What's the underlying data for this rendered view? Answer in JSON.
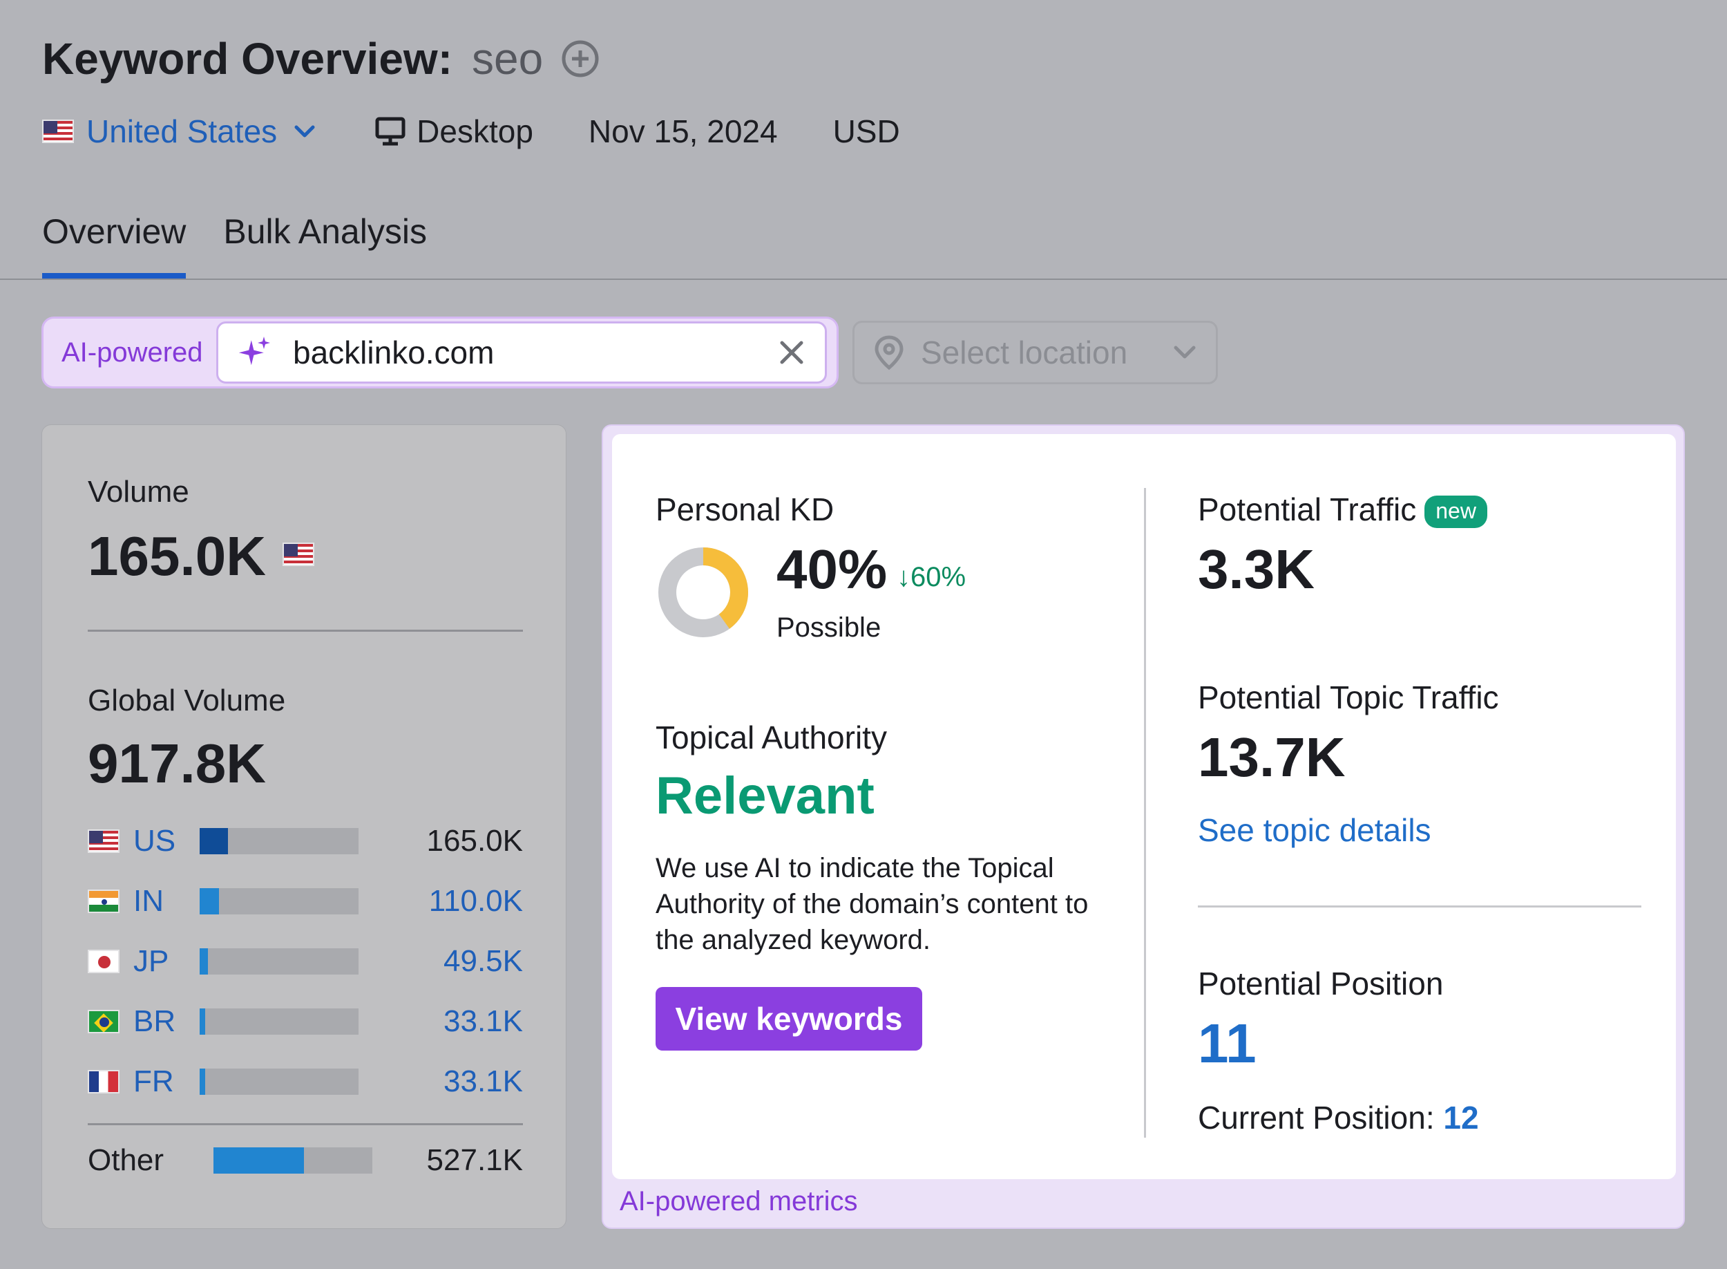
{
  "header": {
    "title": "Keyword Overview:",
    "keyword": "seo",
    "country": "United States",
    "device": "Desktop",
    "date": "Nov 15, 2024",
    "currency": "USD"
  },
  "tabs": [
    {
      "label": "Overview",
      "active": true
    },
    {
      "label": "Bulk Analysis",
      "active": false
    }
  ],
  "search": {
    "ai_label": "AI-powered",
    "domain_value": "backlinko.com",
    "location_placeholder": "Select location"
  },
  "volume_card": {
    "volume_label": "Volume",
    "volume_value": "165.0K",
    "global_label": "Global Volume",
    "global_value": "917.8K",
    "countries": [
      {
        "code": "US",
        "value": "165.0K",
        "share": 0.18,
        "color": "#0f4c97",
        "link": false
      },
      {
        "code": "IN",
        "value": "110.0K",
        "share": 0.12,
        "color": "#2185d0",
        "link": true
      },
      {
        "code": "JP",
        "value": "49.5K",
        "share": 0.054,
        "color": "#2185d0",
        "link": true
      },
      {
        "code": "BR",
        "value": "33.1K",
        "share": 0.036,
        "color": "#2185d0",
        "link": true
      },
      {
        "code": "FR",
        "value": "33.1K",
        "share": 0.036,
        "color": "#2185d0",
        "link": true
      }
    ],
    "other": {
      "label": "Other",
      "value": "527.1K",
      "share": 0.57,
      "color": "#2185d0"
    }
  },
  "metrics": {
    "personal_kd_label": "Personal KD",
    "personal_kd_value": "40%",
    "personal_kd_fraction": 0.4,
    "personal_kd_delta": "↓60%",
    "personal_kd_level": "Possible",
    "topical_authority_label": "Topical Authority",
    "topical_authority_value": "Relevant",
    "topical_authority_desc": "We use AI to indicate the Topical Authority of the domain’s content to the analyzed keyword.",
    "view_keywords_label": "View keywords",
    "potential_traffic_label": "Potential Traffic",
    "new_badge": "new",
    "potential_traffic_value": "3.3K",
    "potential_topic_traffic_label": "Potential Topic Traffic",
    "potential_topic_traffic_value": "13.7K",
    "see_topic_details": "See topic details",
    "potential_position_label": "Potential Position",
    "potential_position_value": "11",
    "current_position_label": "Current Position:",
    "current_position_value": "12",
    "footer_label": "AI-powered metrics"
  },
  "colors": {
    "accent_blue": "#1a5bc8",
    "ai_purple": "#8b3fe0",
    "relevant_green": "#0a9a73",
    "kd_yellow": "#f6bd3b"
  }
}
